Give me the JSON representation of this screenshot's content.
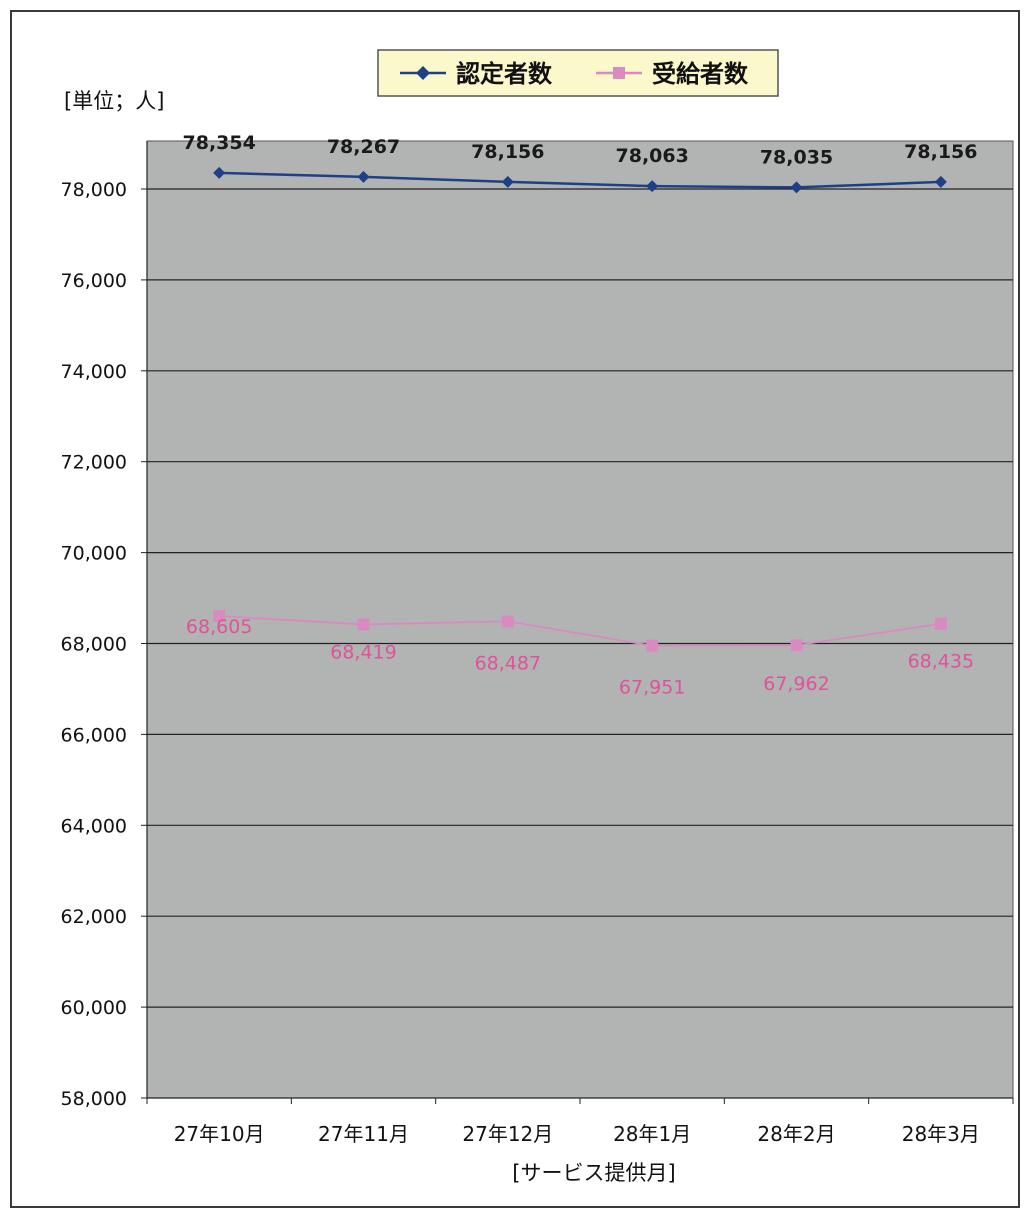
{
  "chart_data": {
    "type": "line",
    "unit_label": "[単位；人]",
    "xlabel": "[サービス提供月]",
    "categories": [
      "27年10月",
      "27年11月",
      "27年12月",
      "28年1月",
      "28年2月",
      "28年3月"
    ],
    "ylim": [
      58000,
      78000
    ],
    "y_ticks": [
      "58,000",
      "60,000",
      "62,000",
      "64,000",
      "66,000",
      "68,000",
      "70,000",
      "72,000",
      "74,000",
      "76,000",
      "78,000"
    ],
    "grid": true,
    "legend_position": "top-center",
    "series": [
      {
        "name": "認定者数",
        "values": [
          78354,
          78267,
          78156,
          78063,
          78035,
          78156
        ],
        "labels": [
          "78,354",
          "78,267",
          "78,156",
          "78,063",
          "78,035",
          "78,156"
        ],
        "color": "#1f3f86",
        "marker": "diamond"
      },
      {
        "name": "受給者数",
        "values": [
          68605,
          68419,
          68487,
          67951,
          67962,
          68435
        ],
        "labels": [
          "68,605",
          "68,419",
          "68,487",
          "67,951",
          "67,962",
          "68,435"
        ],
        "color": "#d98ac0",
        "label_color": "#e0529a",
        "marker": "square"
      }
    ],
    "plot_background": "#b2b4b3",
    "legend_background": "#fbf8cc"
  }
}
